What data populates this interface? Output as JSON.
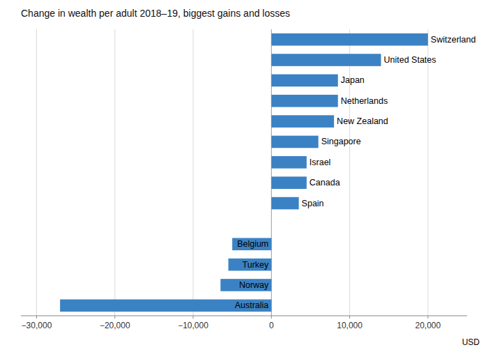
{
  "chart_data": {
    "type": "bar",
    "orientation": "horizontal",
    "title": "Change in wealth per adult 2018–19, biggest gains and losses",
    "categories": [
      "Switzerland",
      "United States",
      "Japan",
      "Netherlands",
      "New Zealand",
      "Singapore",
      "Israel",
      "Canada",
      "Spain",
      null,
      "Belgium",
      "Turkey",
      "Norway",
      "Australia"
    ],
    "values": [
      20000,
      14000,
      8500,
      8500,
      8000,
      6000,
      4500,
      4500,
      3500,
      null,
      -5000,
      -5500,
      -6500,
      -27000
    ],
    "color": "#3b82c4",
    "xlabel": "USD",
    "xlim": [
      -32000,
      25000
    ],
    "xticks": [
      {
        "value": -30000,
        "label": "−30,000"
      },
      {
        "value": -20000,
        "label": "−20,000"
      },
      {
        "value": -10000,
        "label": "−10,000"
      },
      0,
      {
        "value": 10000,
        "label": "10,000"
      },
      {
        "value": 20000,
        "label": "20,000"
      }
    ],
    "grid": true
  }
}
